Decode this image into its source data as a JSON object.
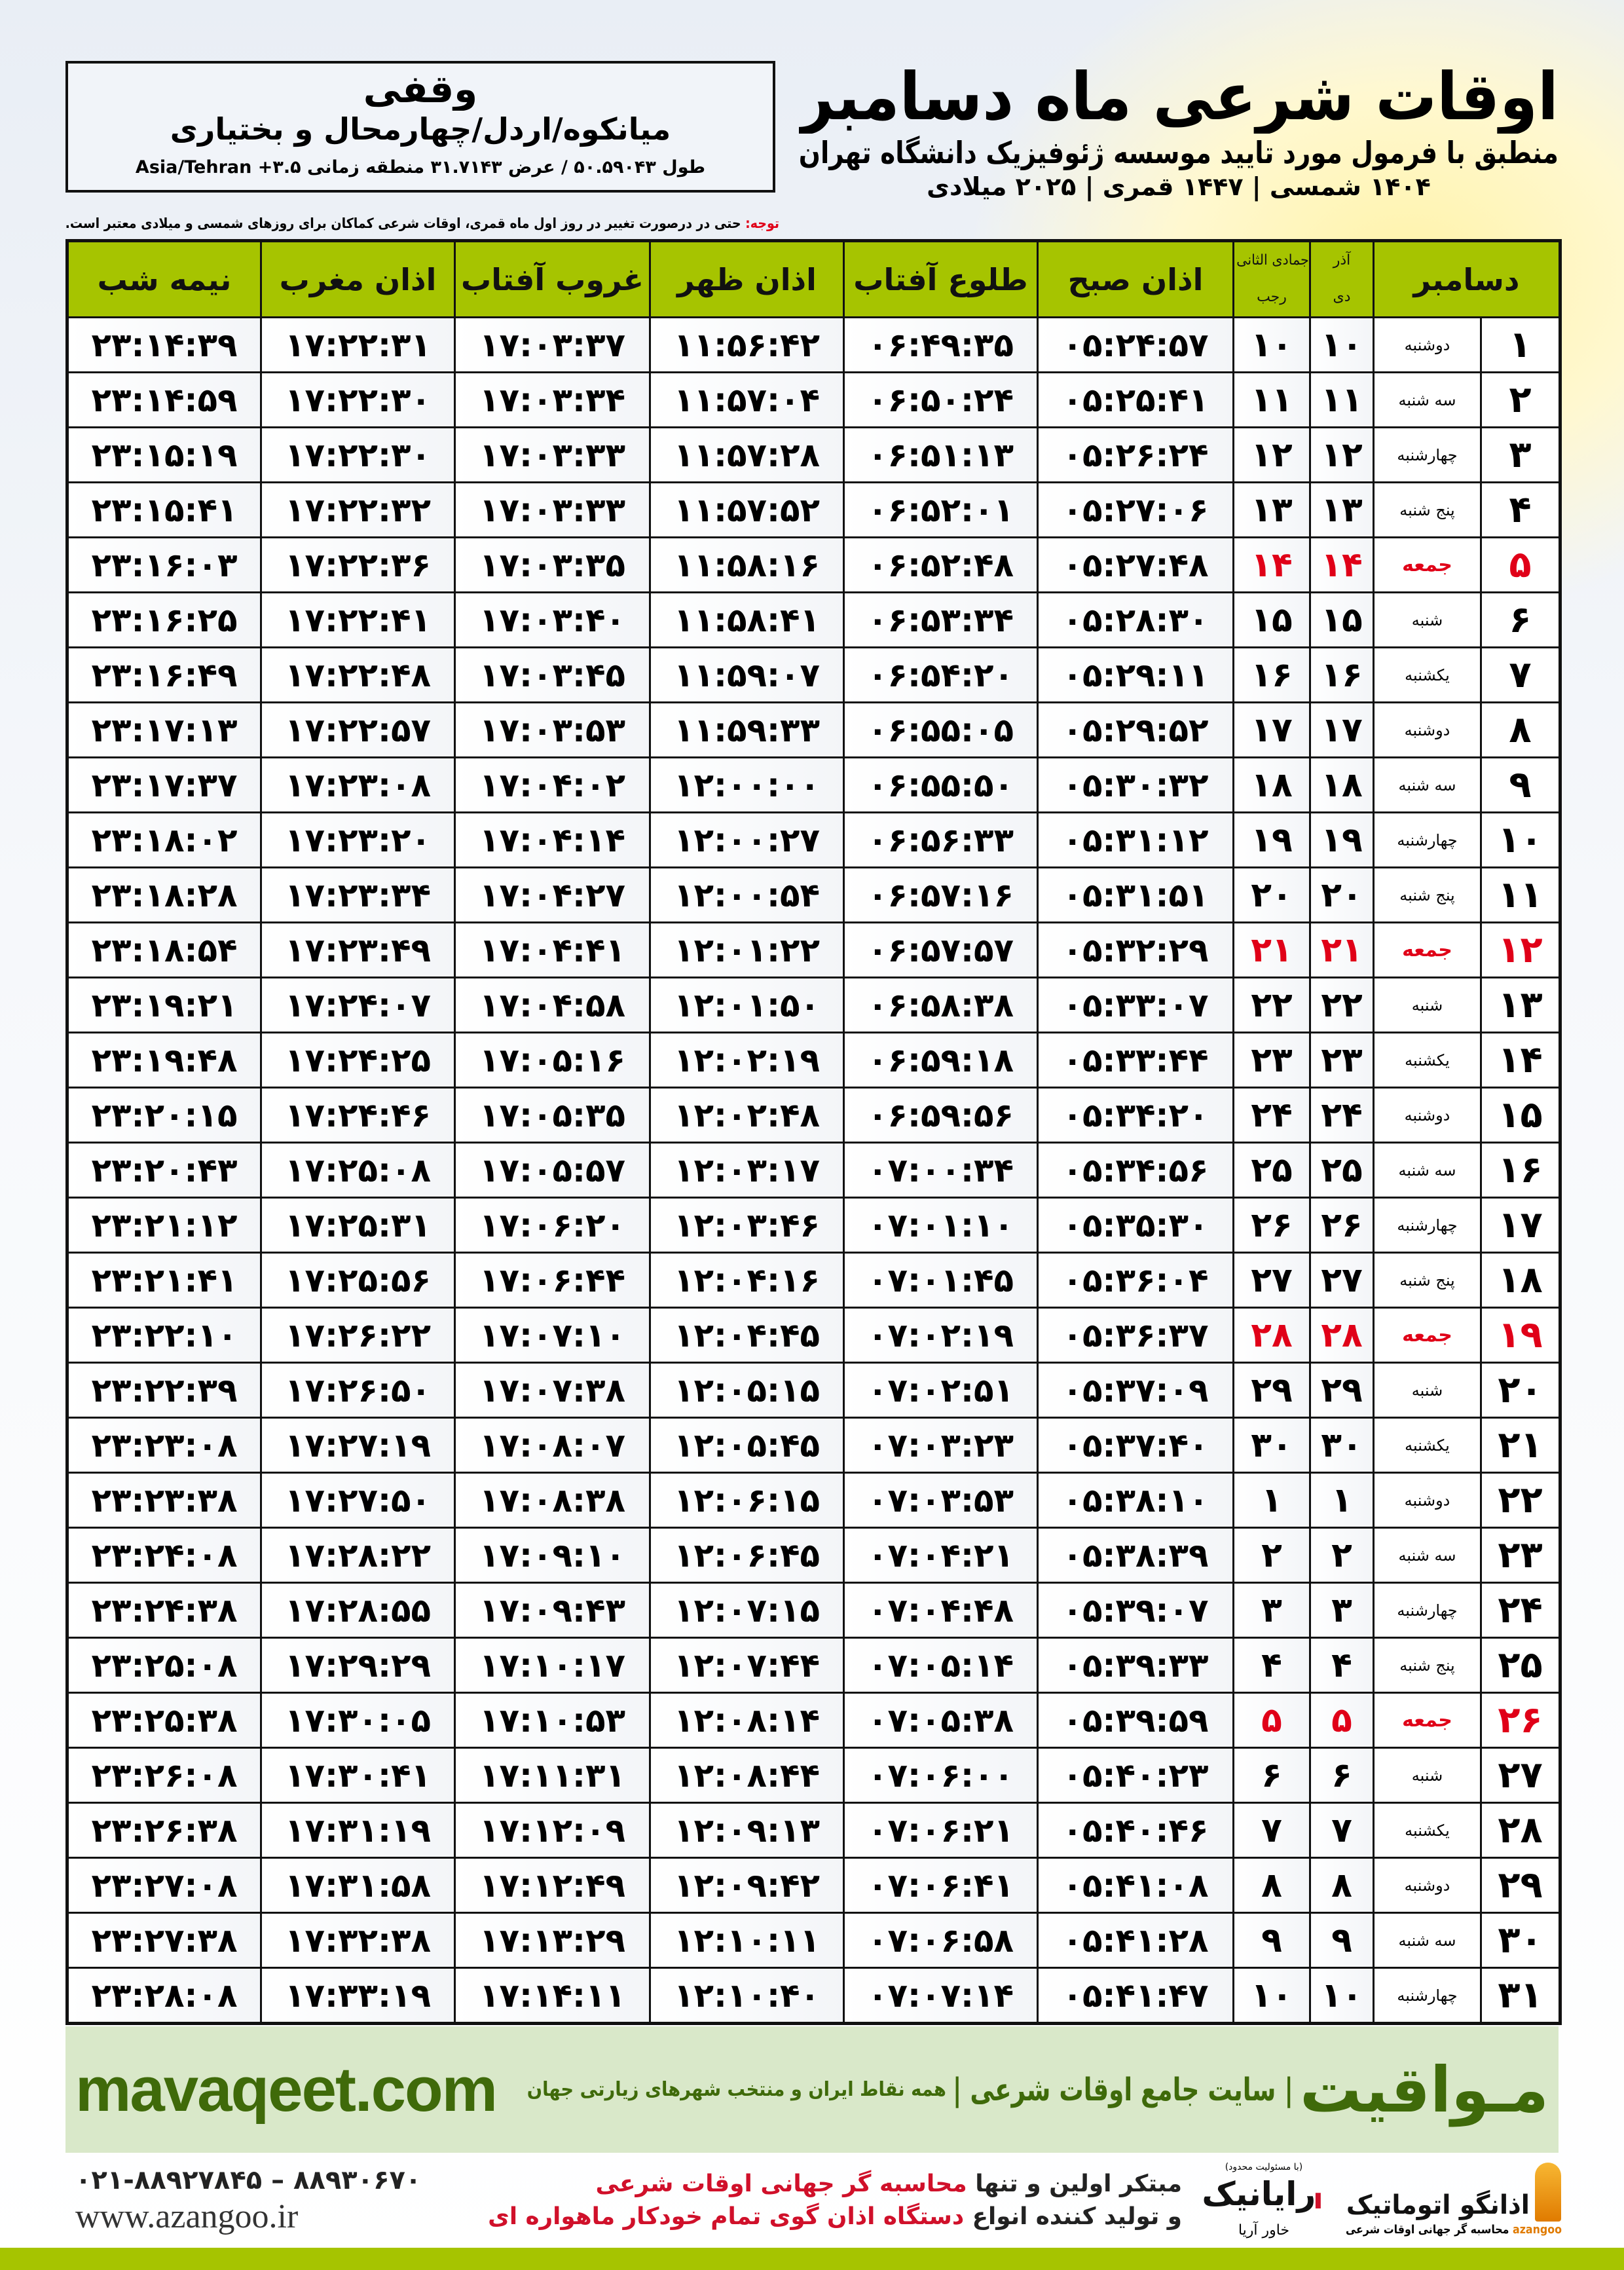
{
  "header": {
    "title": "اوقات شرعی ماه دسامبر",
    "subtitle": "منطبق با فرمول مورد تایید موسسه ژئوفیزیک دانشگاه تهران",
    "dateline": "۱۴۰۴ شمسی | ۱۴۴۷ قمری | ۲۰۲۵ میلادی",
    "note_label": "توجه:",
    "note_text": " حتی در درصورت تغییر در روز اول ماه قمری، اوقات شرعی کماکان برای روزهای شمسی و میلادی معتبر است."
  },
  "location": {
    "name": "وقفی",
    "region": "میانکوه/اردل/چهارمحال و بختیاری",
    "coords": "طول ۵۰.۵۹۰۴۳ / عرض ۳۱.۷۱۴۳ منطقه زمانی Asia/Tehran +۳.۵"
  },
  "table": {
    "headers": {
      "day": "دسامبر",
      "shamsi_top": "آذر",
      "shamsi_bottom": "دی",
      "hijri_top": "جمادی الثانی",
      "hijri_bottom": "رجب",
      "fajr": "اذان صبح",
      "sunrise": "طلوع آفتاب",
      "dhuhr": "اذان ظهر",
      "sunset": "غروب آفتاب",
      "maghrib": "اذان مغرب",
      "midnight": "نیمه شب"
    },
    "rows": [
      [
        "۱",
        "دوشنبه",
        "۱۰",
        "۱۰",
        "۰۵:۲۴:۵۷",
        "۰۶:۴۹:۳۵",
        "۱۱:۵۶:۴۲",
        "۱۷:۰۳:۳۷",
        "۱۷:۲۲:۳۱",
        "۲۳:۱۴:۳۹"
      ],
      [
        "۲",
        "سه شنبه",
        "۱۱",
        "۱۱",
        "۰۵:۲۵:۴۱",
        "۰۶:۵۰:۲۴",
        "۱۱:۵۷:۰۴",
        "۱۷:۰۳:۳۴",
        "۱۷:۲۲:۳۰",
        "۲۳:۱۴:۵۹"
      ],
      [
        "۳",
        "چهارشنبه",
        "۱۲",
        "۱۲",
        "۰۵:۲۶:۲۴",
        "۰۶:۵۱:۱۳",
        "۱۱:۵۷:۲۸",
        "۱۷:۰۳:۳۳",
        "۱۷:۲۲:۳۰",
        "۲۳:۱۵:۱۹"
      ],
      [
        "۴",
        "پنج شنبه",
        "۱۳",
        "۱۳",
        "۰۵:۲۷:۰۶",
        "۰۶:۵۲:۰۱",
        "۱۱:۵۷:۵۲",
        "۱۷:۰۳:۳۳",
        "۱۷:۲۲:۳۲",
        "۲۳:۱۵:۴۱"
      ],
      [
        "۵",
        "جمعه",
        "۱۴",
        "۱۴",
        "۰۵:۲۷:۴۸",
        "۰۶:۵۲:۴۸",
        "۱۱:۵۸:۱۶",
        "۱۷:۰۳:۳۵",
        "۱۷:۲۲:۳۶",
        "۲۳:۱۶:۰۳"
      ],
      [
        "۶",
        "شنبه",
        "۱۵",
        "۱۵",
        "۰۵:۲۸:۳۰",
        "۰۶:۵۳:۳۴",
        "۱۱:۵۸:۴۱",
        "۱۷:۰۳:۴۰",
        "۱۷:۲۲:۴۱",
        "۲۳:۱۶:۲۵"
      ],
      [
        "۷",
        "یکشنبه",
        "۱۶",
        "۱۶",
        "۰۵:۲۹:۱۱",
        "۰۶:۵۴:۲۰",
        "۱۱:۵۹:۰۷",
        "۱۷:۰۳:۴۵",
        "۱۷:۲۲:۴۸",
        "۲۳:۱۶:۴۹"
      ],
      [
        "۸",
        "دوشنبه",
        "۱۷",
        "۱۷",
        "۰۵:۲۹:۵۲",
        "۰۶:۵۵:۰۵",
        "۱۱:۵۹:۳۳",
        "۱۷:۰۳:۵۳",
        "۱۷:۲۲:۵۷",
        "۲۳:۱۷:۱۳"
      ],
      [
        "۹",
        "سه شنبه",
        "۱۸",
        "۱۸",
        "۰۵:۳۰:۳۲",
        "۰۶:۵۵:۵۰",
        "۱۲:۰۰:۰۰",
        "۱۷:۰۴:۰۲",
        "۱۷:۲۳:۰۸",
        "۲۳:۱۷:۳۷"
      ],
      [
        "۱۰",
        "چهارشنبه",
        "۱۹",
        "۱۹",
        "۰۵:۳۱:۱۲",
        "۰۶:۵۶:۳۳",
        "۱۲:۰۰:۲۷",
        "۱۷:۰۴:۱۴",
        "۱۷:۲۳:۲۰",
        "۲۳:۱۸:۰۲"
      ],
      [
        "۱۱",
        "پنج شنبه",
        "۲۰",
        "۲۰",
        "۰۵:۳۱:۵۱",
        "۰۶:۵۷:۱۶",
        "۱۲:۰۰:۵۴",
        "۱۷:۰۴:۲۷",
        "۱۷:۲۳:۳۴",
        "۲۳:۱۸:۲۸"
      ],
      [
        "۱۲",
        "جمعه",
        "۲۱",
        "۲۱",
        "۰۵:۳۲:۲۹",
        "۰۶:۵۷:۵۷",
        "۱۲:۰۱:۲۲",
        "۱۷:۰۴:۴۱",
        "۱۷:۲۳:۴۹",
        "۲۳:۱۸:۵۴"
      ],
      [
        "۱۳",
        "شنبه",
        "۲۲",
        "۲۲",
        "۰۵:۳۳:۰۷",
        "۰۶:۵۸:۳۸",
        "۱۲:۰۱:۵۰",
        "۱۷:۰۴:۵۸",
        "۱۷:۲۴:۰۷",
        "۲۳:۱۹:۲۱"
      ],
      [
        "۱۴",
        "یکشنبه",
        "۲۳",
        "۲۳",
        "۰۵:۳۳:۴۴",
        "۰۶:۵۹:۱۸",
        "۱۲:۰۲:۱۹",
        "۱۷:۰۵:۱۶",
        "۱۷:۲۴:۲۵",
        "۲۳:۱۹:۴۸"
      ],
      [
        "۱۵",
        "دوشنبه",
        "۲۴",
        "۲۴",
        "۰۵:۳۴:۲۰",
        "۰۶:۵۹:۵۶",
        "۱۲:۰۲:۴۸",
        "۱۷:۰۵:۳۵",
        "۱۷:۲۴:۴۶",
        "۲۳:۲۰:۱۵"
      ],
      [
        "۱۶",
        "سه شنبه",
        "۲۵",
        "۲۵",
        "۰۵:۳۴:۵۶",
        "۰۷:۰۰:۳۴",
        "۱۲:۰۳:۱۷",
        "۱۷:۰۵:۵۷",
        "۱۷:۲۵:۰۸",
        "۲۳:۲۰:۴۳"
      ],
      [
        "۱۷",
        "چهارشنبه",
        "۲۶",
        "۲۶",
        "۰۵:۳۵:۳۰",
        "۰۷:۰۱:۱۰",
        "۱۲:۰۳:۴۶",
        "۱۷:۰۶:۲۰",
        "۱۷:۲۵:۳۱",
        "۲۳:۲۱:۱۲"
      ],
      [
        "۱۸",
        "پنج شنبه",
        "۲۷",
        "۲۷",
        "۰۵:۳۶:۰۴",
        "۰۷:۰۱:۴۵",
        "۱۲:۰۴:۱۶",
        "۱۷:۰۶:۴۴",
        "۱۷:۲۵:۵۶",
        "۲۳:۲۱:۴۱"
      ],
      [
        "۱۹",
        "جمعه",
        "۲۸",
        "۲۸",
        "۰۵:۳۶:۳۷",
        "۰۷:۰۲:۱۹",
        "۱۲:۰۴:۴۵",
        "۱۷:۰۷:۱۰",
        "۱۷:۲۶:۲۲",
        "۲۳:۲۲:۱۰"
      ],
      [
        "۲۰",
        "شنبه",
        "۲۹",
        "۲۹",
        "۰۵:۳۷:۰۹",
        "۰۷:۰۲:۵۱",
        "۱۲:۰۵:۱۵",
        "۱۷:۰۷:۳۸",
        "۱۷:۲۶:۵۰",
        "۲۳:۲۲:۳۹"
      ],
      [
        "۲۱",
        "یکشنبه",
        "۳۰",
        "۳۰",
        "۰۵:۳۷:۴۰",
        "۰۷:۰۳:۲۳",
        "۱۲:۰۵:۴۵",
        "۱۷:۰۸:۰۷",
        "۱۷:۲۷:۱۹",
        "۲۳:۲۳:۰۸"
      ],
      [
        "۲۲",
        "دوشنبه",
        "۱",
        "۱",
        "۰۵:۳۸:۱۰",
        "۰۷:۰۳:۵۳",
        "۱۲:۰۶:۱۵",
        "۱۷:۰۸:۳۸",
        "۱۷:۲۷:۵۰",
        "۲۳:۲۳:۳۸"
      ],
      [
        "۲۳",
        "سه شنبه",
        "۲",
        "۲",
        "۰۵:۳۸:۳۹",
        "۰۷:۰۴:۲۱",
        "۱۲:۰۶:۴۵",
        "۱۷:۰۹:۱۰",
        "۱۷:۲۸:۲۲",
        "۲۳:۲۴:۰۸"
      ],
      [
        "۲۴",
        "چهارشنبه",
        "۳",
        "۳",
        "۰۵:۳۹:۰۷",
        "۰۷:۰۴:۴۸",
        "۱۲:۰۷:۱۵",
        "۱۷:۰۹:۴۳",
        "۱۷:۲۸:۵۵",
        "۲۳:۲۴:۳۸"
      ],
      [
        "۲۵",
        "پنج شنبه",
        "۴",
        "۴",
        "۰۵:۳۹:۳۳",
        "۰۷:۰۵:۱۴",
        "۱۲:۰۷:۴۴",
        "۱۷:۱۰:۱۷",
        "۱۷:۲۹:۲۹",
        "۲۳:۲۵:۰۸"
      ],
      [
        "۲۶",
        "جمعه",
        "۵",
        "۵",
        "۰۵:۳۹:۵۹",
        "۰۷:۰۵:۳۸",
        "۱۲:۰۸:۱۴",
        "۱۷:۱۰:۵۳",
        "۱۷:۳۰:۰۵",
        "۲۳:۲۵:۳۸"
      ],
      [
        "۲۷",
        "شنبه",
        "۶",
        "۶",
        "۰۵:۴۰:۲۳",
        "۰۷:۰۶:۰۰",
        "۱۲:۰۸:۴۴",
        "۱۷:۱۱:۳۱",
        "۱۷:۳۰:۴۱",
        "۲۳:۲۶:۰۸"
      ],
      [
        "۲۸",
        "یکشنبه",
        "۷",
        "۷",
        "۰۵:۴۰:۴۶",
        "۰۷:۰۶:۲۱",
        "۱۲:۰۹:۱۳",
        "۱۷:۱۲:۰۹",
        "۱۷:۳۱:۱۹",
        "۲۳:۲۶:۳۸"
      ],
      [
        "۲۹",
        "دوشنبه",
        "۸",
        "۸",
        "۰۵:۴۱:۰۸",
        "۰۷:۰۶:۴۱",
        "۱۲:۰۹:۴۲",
        "۱۷:۱۲:۴۹",
        "۱۷:۳۱:۵۸",
        "۲۳:۲۷:۰۸"
      ],
      [
        "۳۰",
        "سه شنبه",
        "۹",
        "۹",
        "۰۵:۴۱:۲۸",
        "۰۷:۰۶:۵۸",
        "۱۲:۱۰:۱۱",
        "۱۷:۱۳:۲۹",
        "۱۷:۳۲:۳۸",
        "۲۳:۲۷:۳۸"
      ],
      [
        "۳۱",
        "چهارشنبه",
        "۱۰",
        "۱۰",
        "۰۵:۴۱:۴۷",
        "۰۷:۰۷:۱۴",
        "۱۲:۱۰:۴۰",
        "۱۷:۱۴:۱۱",
        "۱۷:۳۳:۱۹",
        "۲۳:۲۸:۰۸"
      ]
    ],
    "friday_label": "جمعه",
    "friday_color": "#e00018",
    "header_color": "#a6c400"
  },
  "banner": {
    "site": "mavaqeet.com",
    "brand": "مـواقیت",
    "slogan": "| سایت جامع اوقات شرعی |",
    "slogan_sub": "همه نقاط ایران و منتخب شهرهای زیارتی جهان"
  },
  "footer": {
    "phone": "۰۲۱-۸۸۹۲۷۸۴۵ – ۸۸۹۳۰۶۷۰",
    "www": "www.azangoo.ir",
    "ad1_a": "مبتکر اولین و تنها ",
    "ad1_b": "محاسبه گر جهانی اوقات شرعی",
    "ad2_a": "و تولید کننده انواع ",
    "ad2_b": "دستگاه اذان گوی تمام خودکار ماهواره ای",
    "raya_note": "(با مسئولیت محدود)",
    "raya_name": "رایانیک",
    "raya_sub": "خاور آریا",
    "az_name": "اذانگو اتوماتیک",
    "az_latin": "azangoo",
    "az_sub": "محاسبه گر جهانی اوقات شرعی"
  }
}
